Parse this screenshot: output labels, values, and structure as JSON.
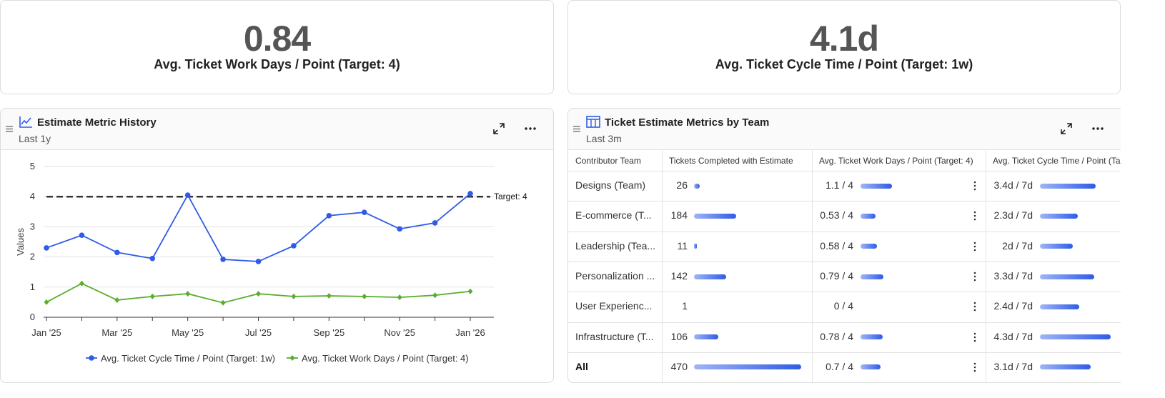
{
  "kpis": [
    {
      "value": "0.84",
      "label": "Avg. Ticket Work Days / Point (Target: 4)"
    },
    {
      "value": "4.1d",
      "label": "Avg. Ticket Cycle Time / Point (Target: 1w)"
    }
  ],
  "history_panel": {
    "title": "Estimate Metric History",
    "subtitle": "Last 1y"
  },
  "chart_data": {
    "type": "line",
    "categories": [
      "Jan '25",
      null,
      "Mar '25",
      null,
      "May '25",
      null,
      "Jul '25",
      null,
      "Sep '25",
      null,
      "Nov '25",
      null,
      "Jan '26"
    ],
    "y_label": "Values",
    "ylim": [
      0,
      5
    ],
    "yticks": [
      0,
      1,
      2,
      3,
      4,
      5
    ],
    "grid": true,
    "legend": "bottom",
    "reference_line": {
      "value": 4,
      "label": "Target: 4"
    },
    "series": [
      {
        "name": "Avg. Ticket Cycle Time / Point (Target: 1w)",
        "color": "#2f5be8",
        "marker": "circle",
        "values": [
          2.3,
          2.72,
          2.15,
          1.95,
          4.05,
          1.92,
          1.85,
          2.37,
          3.37,
          3.48,
          2.93,
          3.13,
          4.1
        ]
      },
      {
        "name": "Avg. Ticket Work Days / Point (Target: 4)",
        "color": "#5aad2e",
        "marker": "diamond",
        "values": [
          0.5,
          1.12,
          0.57,
          0.69,
          0.78,
          0.48,
          0.78,
          0.69,
          0.71,
          0.69,
          0.66,
          0.73,
          0.86
        ]
      }
    ]
  },
  "table_panel": {
    "title": "Ticket Estimate Metrics by Team",
    "subtitle": "Last 3m"
  },
  "table": {
    "columns": [
      "Contributor Team",
      "Tickets Completed with Estimate",
      "Avg. Ticket Work Days / Point (Target: 4)",
      "Avg. Ticket Cycle Time / Point (Targ"
    ],
    "rows": [
      {
        "team": "Designs (Team)",
        "tickets": 26,
        "work_days": {
          "value": 1.1,
          "label": "1.1 / 4"
        },
        "cycle_time": {
          "value": 3.4,
          "label": "3.4d / 7d"
        }
      },
      {
        "team": "E-commerce (T...",
        "tickets": 184,
        "work_days": {
          "value": 0.53,
          "label": "0.53 / 4"
        },
        "cycle_time": {
          "value": 2.3,
          "label": "2.3d / 7d"
        }
      },
      {
        "team": "Leadership (Tea...",
        "tickets": 11,
        "work_days": {
          "value": 0.58,
          "label": "0.58 / 4"
        },
        "cycle_time": {
          "value": 2,
          "label": "2d / 7d"
        }
      },
      {
        "team": "Personalization ...",
        "tickets": 142,
        "work_days": {
          "value": 0.79,
          "label": "0.79 / 4"
        },
        "cycle_time": {
          "value": 3.3,
          "label": "3.3d / 7d"
        }
      },
      {
        "team": "User Experienc...",
        "tickets": 1,
        "work_days": {
          "value": 0,
          "label": "0 / 4"
        },
        "cycle_time": {
          "value": 2.4,
          "label": "2.4d / 7d"
        }
      },
      {
        "team": "Infrastructure (T...",
        "tickets": 106,
        "work_days": {
          "value": 0.78,
          "label": "0.78 / 4"
        },
        "cycle_time": {
          "value": 4.3,
          "label": "4.3d / 7d"
        }
      },
      {
        "team": "All",
        "tickets": 470,
        "work_days": {
          "value": 0.7,
          "label": "0.7 / 4"
        },
        "cycle_time": {
          "value": 3.1,
          "label": "3.1d / 7d"
        }
      }
    ]
  }
}
